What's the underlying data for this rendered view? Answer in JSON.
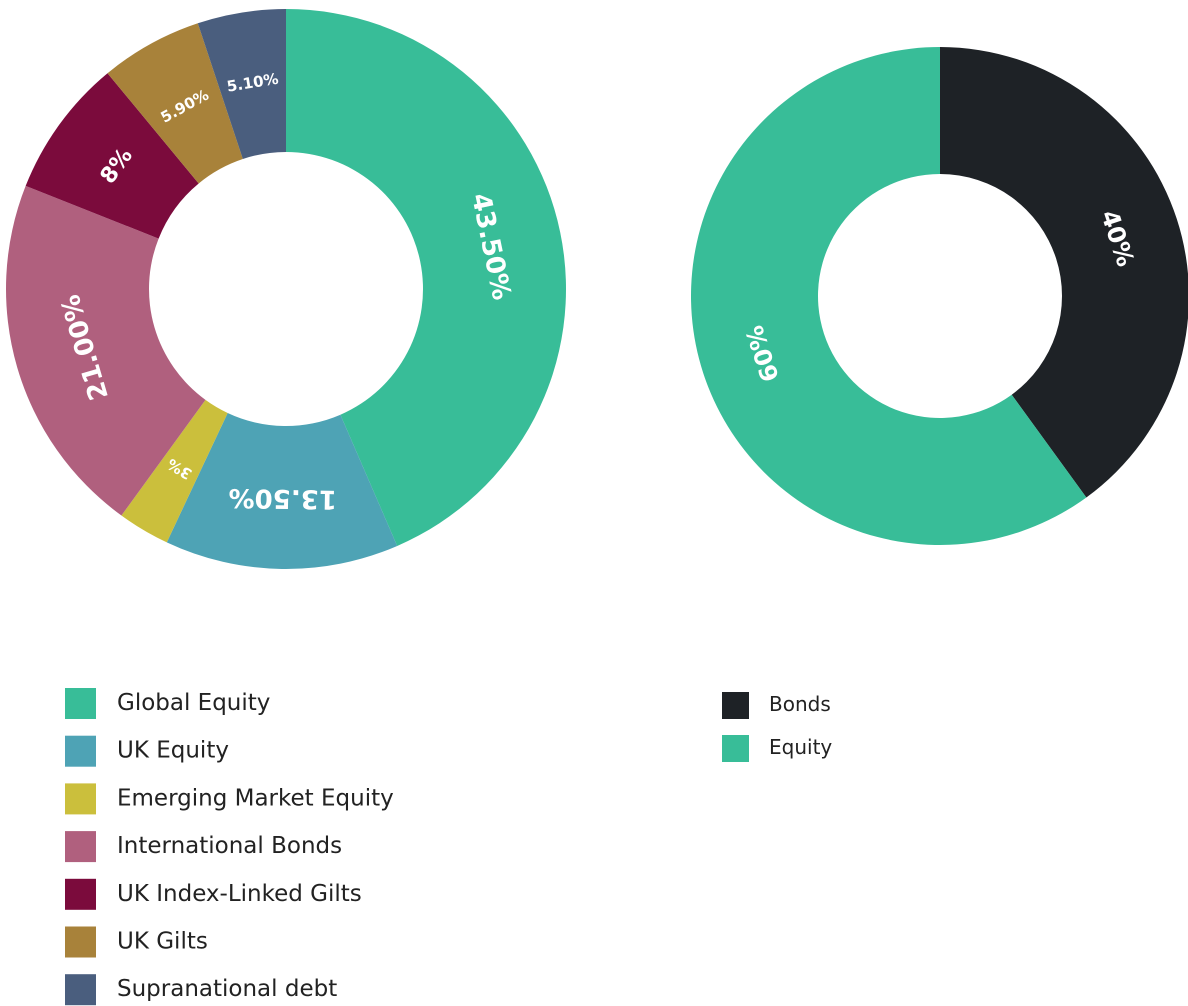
{
  "chart_data": [
    {
      "type": "pie",
      "categories": [
        "Global Equity",
        "UK Equity",
        "Emerging Market Equity",
        "International Bonds",
        "UK Index-Linked Gilts",
        "UK Gilts",
        "Supranational debt"
      ],
      "values": [
        43.5,
        13.5,
        3,
        21,
        8,
        5.9,
        5.1
      ],
      "value_labels": [
        "43.50%",
        "13.50%",
        "3%",
        "21.00%",
        "8%",
        "5.90%",
        "5.10%"
      ],
      "colors": [
        "#38bd98",
        "#4ea3b5",
        "#cbbf3c",
        "#b0607e",
        "#7b0b3c",
        "#a8823a",
        "#4a5e7e"
      ]
    },
    {
      "type": "pie",
      "categories": [
        "Bonds",
        "Equity"
      ],
      "values": [
        40,
        60
      ],
      "value_labels": [
        "40%",
        "60%"
      ],
      "colors": [
        "#1e2226",
        "#38bd98"
      ]
    }
  ]
}
